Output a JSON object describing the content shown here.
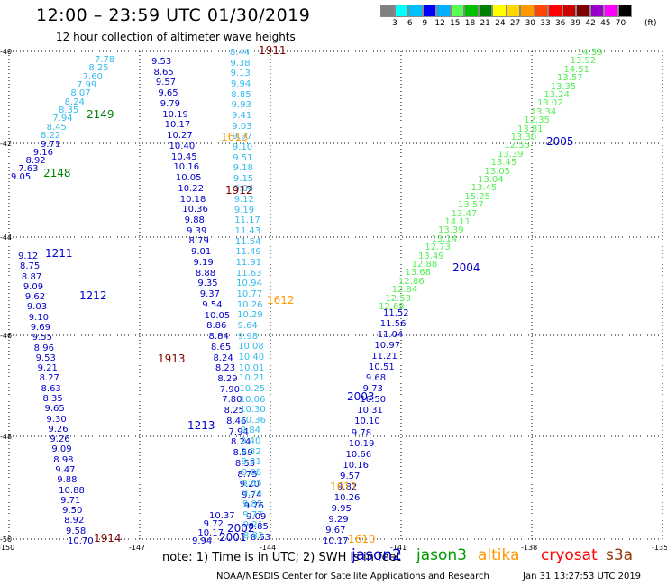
{
  "header": {
    "title": "12:00 – 23:59 UTC 01/30/2019",
    "subtitle": "12 hour collection of altimeter wave heights"
  },
  "legend": {
    "colors": [
      "#808080",
      "#00ffff",
      "#00bfff",
      "#0000ff",
      "#00b0ff",
      "#55ff55",
      "#00c000",
      "#008000",
      "#ffff00",
      "#ffd700",
      "#ff9900",
      "#ff4500",
      "#ff0000",
      "#cc0000",
      "#800000",
      "#9900cc",
      "#ff00ff",
      "#000000"
    ],
    "ticks": [
      "3",
      "6",
      "9",
      "12",
      "15",
      "18",
      "21",
      "24",
      "27",
      "30",
      "33",
      "36",
      "39",
      "42",
      "45",
      "70"
    ],
    "unit": "(ft)"
  },
  "axes": {
    "x_labels": [
      "-150",
      "-147",
      "-144",
      "-141",
      "-138",
      "-135"
    ],
    "y_labels": [
      "-40",
      "-42",
      "-44",
      "-46",
      "-48",
      "-50"
    ]
  },
  "footer": {
    "note": "note:  1) Time is in UTC;  2) SWH is in feet",
    "satellites": [
      {
        "name": "jason2",
        "color": "#0000cc"
      },
      {
        "name": "jason3",
        "color": "#009900"
      },
      {
        "name": "altika",
        "color": "#ff9900"
      },
      {
        "name": "cryosat",
        "color": "#ff0000"
      },
      {
        "name": "s3a",
        "color": "#993300"
      }
    ],
    "credit": "NOAA/NESDIS Center for Satellite Applications and Research",
    "timestamp": "Jan 31 13:27:53 UTC 2019"
  },
  "track_labels": [
    {
      "text": "1911",
      "color": "#800000"
    },
    {
      "text": "2149",
      "color": "#008000"
    },
    {
      "text": "2148",
      "color": "#008000"
    },
    {
      "text": "2005",
      "color": "#0000cc"
    },
    {
      "text": "1613",
      "color": "#ff9900"
    },
    {
      "text": "1912",
      "color": "#800000"
    },
    {
      "text": "1211",
      "color": "#0000cc"
    },
    {
      "text": "2004",
      "color": "#0000cc"
    },
    {
      "text": "1212",
      "color": "#0000cc"
    },
    {
      "text": "1612",
      "color": "#ff9900"
    },
    {
      "text": "1913",
      "color": "#800000"
    },
    {
      "text": "2003",
      "color": "#0000cc"
    },
    {
      "text": "1213",
      "color": "#0000cc"
    },
    {
      "text": "1611",
      "color": "#ff9900"
    },
    {
      "text": "2002",
      "color": "#0000cc"
    },
    {
      "text": "2001",
      "color": "#0000cc"
    },
    {
      "text": "1914",
      "color": "#800000"
    },
    {
      "text": "1610",
      "color": "#ff9900"
    }
  ],
  "tracks": [
    {
      "color": "#33bbee",
      "values": [
        "7.78",
        "8.25",
        "7.60",
        "7.99",
        "8.07",
        "8.24",
        "8.35",
        "7.94",
        "8.45",
        "8.22"
      ]
    },
    {
      "color": "#0000cc",
      "values": [
        "9.71",
        "9.16",
        "8.92",
        "7.63",
        "9.05"
      ]
    },
    {
      "color": "#0000cc",
      "values": [
        "9.53",
        "8.65",
        "9.57",
        "9.65",
        "9.79",
        "10.19",
        "10.17",
        "10.27",
        "10.40",
        "10.45",
        "10.16",
        "10.05",
        "10.22",
        "10.18",
        "10.36",
        "9.88",
        "9.39",
        "8.79",
        "9.01",
        "9.19",
        "8.88",
        "9.35",
        "9.37",
        "9.54",
        "10.05",
        "8.86",
        "8.84",
        "8.65",
        "8.24",
        "8.23",
        "8.29",
        "7.90",
        "7.80",
        "8.25",
        "8.46",
        "7.94",
        "8.24",
        "8.59",
        "8.55",
        "8.75",
        "9.20",
        "9.74",
        "9.76",
        "9.09",
        "8.85",
        "8.53"
      ]
    },
    {
      "color": "#33bbee",
      "values": [
        "8.44",
        "9.38",
        "9.13",
        "9.94",
        "8.85",
        "9.93",
        "9.41",
        "9.03",
        "9.97",
        "9.10",
        "9.51",
        "9.18",
        "9.15",
        "9.04",
        "9.12",
        "9.19",
        "11.17",
        "11.43",
        "11.54",
        "11.49",
        "11.91",
        "11.63",
        "10.94",
        "10.77",
        "10.26",
        "10.29",
        "9.64",
        "9.98",
        "10.08",
        "10.40",
        "10.01",
        "10.21",
        "10.25",
        "10.06",
        "10.30",
        "10.36",
        "9.84",
        "9.40",
        "9.82",
        "9.31",
        "9.08",
        "9.65",
        "9.74",
        "9.85",
        "9.77",
        "9.21",
        "8.83"
      ]
    },
    {
      "color": "#0000cc",
      "values": [
        "9.12",
        "8.75",
        "8.87",
        "9.09",
        "9.62",
        "9.03",
        "9.10",
        "9.69",
        "9.55",
        "8.96",
        "9.53",
        "9.21",
        "8.27",
        "8.63",
        "8.35",
        "9.65",
        "9.30",
        "9.26",
        "9.26",
        "9.09",
        "8.98",
        "9.47",
        "9.88",
        "10.88",
        "9.71",
        "9.50",
        "8.92",
        "9.58",
        "10.70"
      ]
    },
    {
      "color": "#0000cc",
      "values": [
        "11.52",
        "11.56",
        "11.04",
        "10.97",
        "11.21",
        "10.51",
        "9.68",
        "9.73",
        "10.50",
        "10.31",
        "10.10",
        "9.78",
        "10.19",
        "10.66",
        "10.16",
        "9.57",
        "9.82",
        "10.26",
        "9.95",
        "9.29",
        "9.67",
        "10.17"
      ]
    },
    {
      "color": "#55ee55",
      "values": [
        "14.59",
        "13.92",
        "14.51",
        "13.57",
        "13.35",
        "13.24",
        "13.02",
        "13.34",
        "12.35",
        "13.81",
        "13.30",
        "12.55",
        "13.39",
        "13.45",
        "13.05",
        "13.04",
        "13.45",
        "15.25",
        "13.57",
        "13.47",
        "14.11",
        "13.39",
        "13.14",
        "12.73",
        "13.49",
        "12.88",
        "13.68",
        "12.86",
        "12.84",
        "12.53",
        "12.68"
      ]
    },
    {
      "color": "#0000cc",
      "values": [
        "10.37",
        "9.72",
        "10.17",
        "9.94"
      ]
    }
  ]
}
